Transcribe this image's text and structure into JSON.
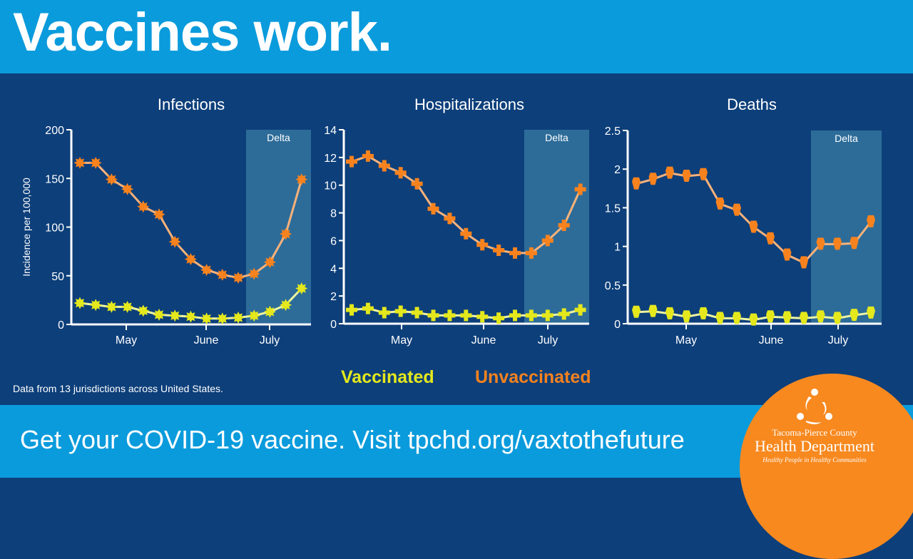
{
  "headline": "Vaccines work.",
  "source_note": "Data from 13 jurisdictions across United States.",
  "cta": "Get your COVID-19 vaccine. Visit tpchd.org/vaxtothefuture",
  "legend": {
    "vaccinated": "Vaccinated",
    "unvaccinated": "Unvaccinated"
  },
  "colors": {
    "header": "#0a9bdc",
    "panel": "#0d3f7a",
    "vaccinated": "#e4e81c",
    "unvaccinated": "#f7821e",
    "delta_band": "#2d6c99"
  },
  "logo": {
    "line1": "Tacoma-Pierce County",
    "line2": "Health Department",
    "tagline": "Healthy People in Healthy Communities",
    "icon": "three-people-circle-icon"
  },
  "chart_data": [
    {
      "type": "line",
      "title": "Infections",
      "ylabel": "Incidence per 100,000",
      "ylim": [
        0,
        200
      ],
      "yticks": [
        "0",
        "50",
        "100",
        "150",
        "200"
      ],
      "xticks": [
        "May",
        "June",
        "July"
      ],
      "band_label": "Delta",
      "marker": "virus-icon",
      "series": [
        {
          "name": "Unvaccinated",
          "values": [
            166,
            166,
            149,
            139,
            121,
            113,
            85,
            67,
            56,
            51,
            48,
            52,
            64,
            93,
            149
          ]
        },
        {
          "name": "Vaccinated",
          "values": [
            22,
            20,
            18,
            18,
            14,
            10,
            9,
            8,
            6,
            6,
            7,
            9,
            13,
            20,
            37
          ]
        }
      ]
    },
    {
      "type": "line",
      "title": "Hospitalizations",
      "ylabel": "",
      "ylim": [
        0,
        14
      ],
      "yticks": [
        "0",
        "2",
        "4",
        "6",
        "8",
        "10",
        "12",
        "14"
      ],
      "xticks": [
        "May",
        "June",
        "July"
      ],
      "band_label": "Delta",
      "marker": "cross-icon",
      "series": [
        {
          "name": "Unvaccinated",
          "values": [
            11.7,
            12.1,
            11.4,
            10.9,
            10.1,
            8.3,
            7.6,
            6.5,
            5.7,
            5.3,
            5.1,
            5.1,
            6.0,
            7.1,
            9.7
          ]
        },
        {
          "name": "Vaccinated",
          "values": [
            1.0,
            1.1,
            0.8,
            0.9,
            0.8,
            0.6,
            0.6,
            0.6,
            0.5,
            0.4,
            0.6,
            0.6,
            0.6,
            0.7,
            1.0
          ]
        }
      ]
    },
    {
      "type": "line",
      "title": "Deaths",
      "ylabel": "",
      "ylim": [
        0,
        2.5
      ],
      "yticks": [
        "0",
        "0.5",
        "1",
        "1.5",
        "2",
        "2.5"
      ],
      "xticks": [
        "May",
        "June",
        "July"
      ],
      "band_label": "Delta",
      "marker": "coffin-icon",
      "series": [
        {
          "name": "Unvaccinated",
          "values": [
            1.81,
            1.87,
            1.95,
            1.91,
            1.93,
            1.55,
            1.47,
            1.25,
            1.1,
            0.89,
            0.79,
            1.03,
            1.03,
            1.04,
            1.32
          ]
        },
        {
          "name": "Vaccinated",
          "values": [
            0.15,
            0.16,
            0.13,
            0.09,
            0.13,
            0.07,
            0.07,
            0.05,
            0.09,
            0.08,
            0.07,
            0.09,
            0.07,
            0.11,
            0.14
          ]
        }
      ]
    }
  ]
}
